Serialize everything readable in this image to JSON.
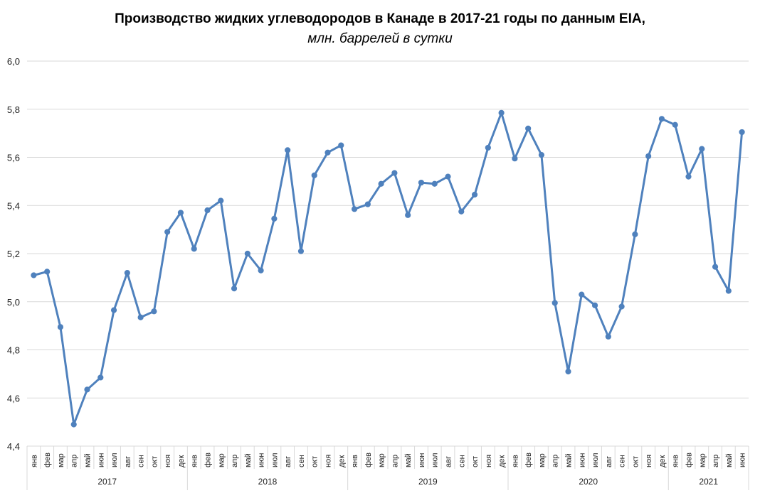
{
  "chart_data": {
    "type": "line",
    "title": "Производство жидких углеводородов в Канаде в 2017-21 годы по данным EIA,",
    "subtitle": "млн. баррелей в сутки",
    "ylim": [
      4.4,
      6.0
    ],
    "yticks": [
      "4,4",
      "4,6",
      "4,8",
      "5,0",
      "5,2",
      "5,4",
      "5,6",
      "5,8",
      "6,0"
    ],
    "grid": true,
    "color": "#4f81bd",
    "years": [
      {
        "label": "2017",
        "count": 12
      },
      {
        "label": "2018",
        "count": 12
      },
      {
        "label": "2019",
        "count": 12
      },
      {
        "label": "2020",
        "count": 12
      },
      {
        "label": "2021",
        "count": 6
      }
    ],
    "months": [
      "янв",
      "фев",
      "мар",
      "апр",
      "май",
      "июн",
      "июл",
      "авг",
      "сен",
      "окт",
      "ноя",
      "дек"
    ],
    "values": [
      5.11,
      5.125,
      4.895,
      4.49,
      4.635,
      4.685,
      4.965,
      5.12,
      4.935,
      4.96,
      5.29,
      5.37,
      5.22,
      5.38,
      5.42,
      5.055,
      5.2,
      5.13,
      5.345,
      5.63,
      5.21,
      5.525,
      5.62,
      5.65,
      5.385,
      5.405,
      5.49,
      5.535,
      5.36,
      5.495,
      5.49,
      5.52,
      5.375,
      5.445,
      5.64,
      5.785,
      5.595,
      5.72,
      5.61,
      4.995,
      4.71,
      5.03,
      4.985,
      4.855,
      4.98,
      5.28,
      5.605,
      5.76,
      5.735,
      5.52,
      5.635,
      5.145,
      5.045,
      5.705
    ]
  }
}
